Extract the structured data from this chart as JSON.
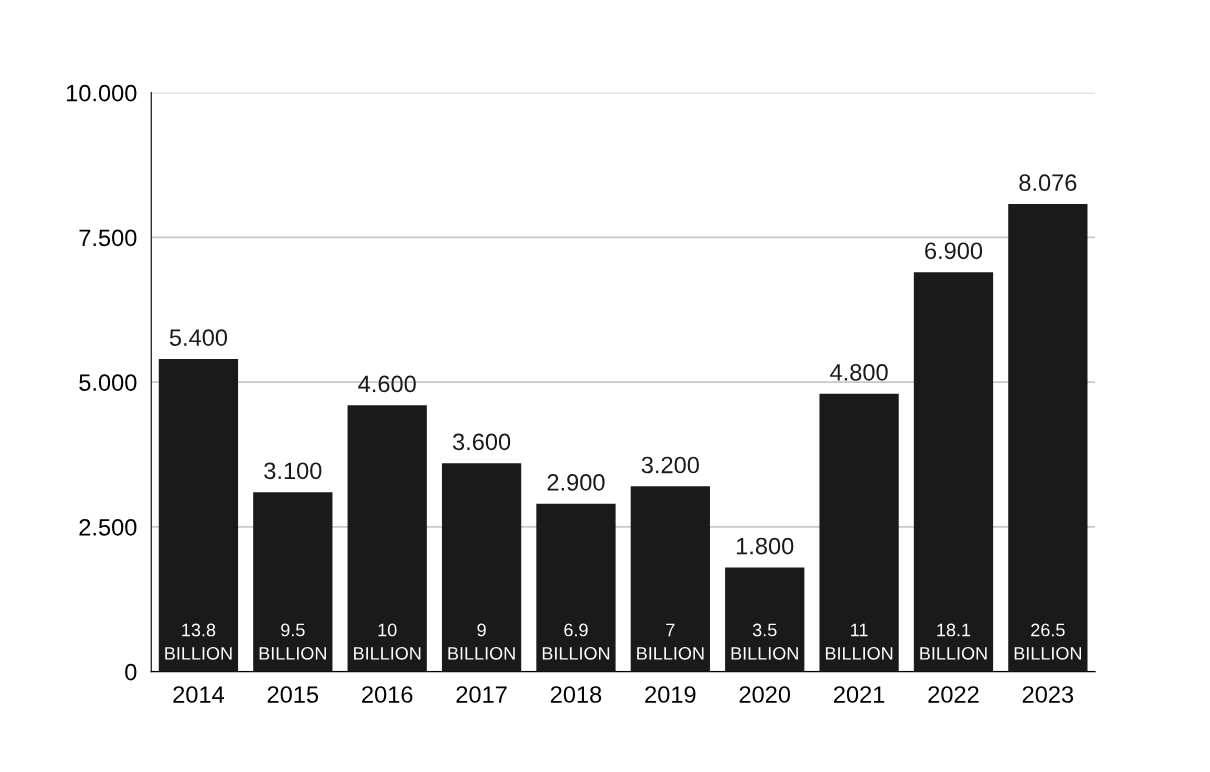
{
  "chart_data": {
    "type": "bar",
    "categories": [
      "2014",
      "2015",
      "2016",
      "2017",
      "2018",
      "2019",
      "2020",
      "2021",
      "2022",
      "2023"
    ],
    "values": [
      5.4,
      3.1,
      4.6,
      3.6,
      2.9,
      3.2,
      1.8,
      4.8,
      6.9,
      8.076
    ],
    "value_labels": [
      "5.400",
      "3.100",
      "4.600",
      "3.600",
      "2.900",
      "3.200",
      "1.800",
      "4.800",
      "6.900",
      "8.076"
    ],
    "color": "#1a1a1a",
    "ylim": [
      0,
      10
    ],
    "yticks": [
      0,
      {
        "value": 2.5,
        "label": "2.500"
      },
      {
        "value": 5,
        "label": "5.000"
      },
      {
        "value": 7.5,
        "label": "7.500"
      },
      {
        "value": 10,
        "label": "10.000"
      }
    ],
    "grid": "y",
    "annotations": [
      "13.8\nBILLION",
      "9.5\nBILLION",
      "10\nBILLION",
      "9\nBILLION",
      "6.9\nBILLION",
      "7\nBILLION",
      "3.5\nBILLION",
      "11\nBILLION",
      "18.1\nBILLION",
      "26.5\nBILLION"
    ]
  }
}
